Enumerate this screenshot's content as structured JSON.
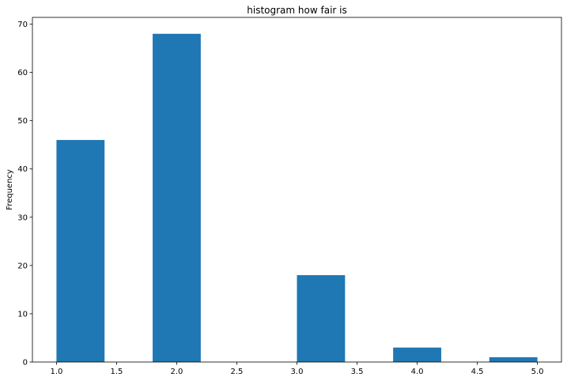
{
  "chart_data": {
    "type": "bar",
    "title": "histogram how fair is",
    "xlabel": "",
    "ylabel": "Frequency",
    "bins": [
      {
        "start": 1.0,
        "end": 1.4,
        "value": 46
      },
      {
        "start": 1.4,
        "end": 1.8,
        "value": 0
      },
      {
        "start": 1.8,
        "end": 2.2,
        "value": 68
      },
      {
        "start": 2.2,
        "end": 2.6,
        "value": 0
      },
      {
        "start": 2.6,
        "end": 3.0,
        "value": 0
      },
      {
        "start": 3.0,
        "end": 3.4,
        "value": 18
      },
      {
        "start": 3.4,
        "end": 3.8,
        "value": 0
      },
      {
        "start": 3.8,
        "end": 4.2,
        "value": 3
      },
      {
        "start": 4.2,
        "end": 4.6,
        "value": 0
      },
      {
        "start": 4.6,
        "end": 5.0,
        "value": 1
      }
    ],
    "xlim": [
      0.8,
      5.2
    ],
    "ylim": [
      0,
      71.4
    ],
    "xticks": [
      "1.0",
      "1.5",
      "2.0",
      "2.5",
      "3.0",
      "3.5",
      "4.0",
      "4.5",
      "5.0"
    ],
    "yticks": [
      "0",
      "10",
      "20",
      "30",
      "40",
      "50",
      "60",
      "70"
    ],
    "grid": false,
    "legend": "none",
    "bar_color": "#1f77b4"
  }
}
